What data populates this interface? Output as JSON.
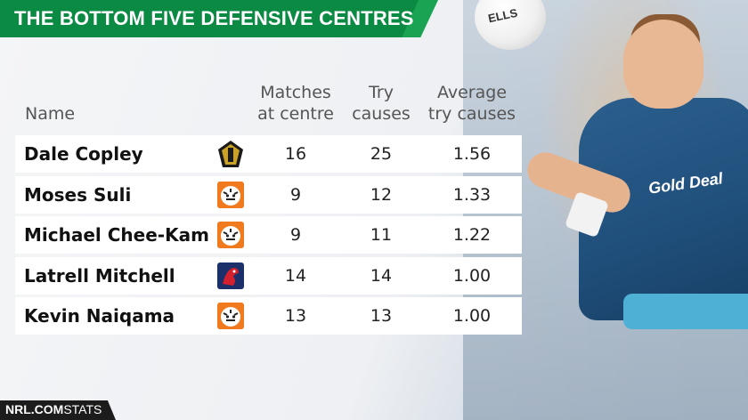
{
  "title": "THE BOTTOM FIVE DEFENSIVE CENTRES",
  "headers": {
    "name": "Name",
    "matches_line1": "Matches",
    "matches_line2": "at centre",
    "try_line1": "Try",
    "try_line2": "causes",
    "avg_line1": "Average",
    "avg_line2": "try causes"
  },
  "chart_data": {
    "type": "table",
    "title": "THE BOTTOM FIVE DEFENSIVE CENTRES",
    "columns": [
      "Name",
      "Matches at centre",
      "Try causes",
      "Average try causes"
    ],
    "rows": [
      {
        "name": "Dale Copley",
        "team_logo": "titans-logo-icon",
        "matches": "16",
        "try_causes": "25",
        "average": "1.56"
      },
      {
        "name": "Moses Suli",
        "team_logo": "tigers-logo-icon",
        "matches": "9",
        "try_causes": "12",
        "average": "1.33"
      },
      {
        "name": "Michael Chee-Kam",
        "team_logo": "tigers-logo-icon",
        "matches": "9",
        "try_causes": "11",
        "average": "1.22"
      },
      {
        "name": "Latrell Mitchell",
        "team_logo": "roosters-logo-icon",
        "matches": "14",
        "try_causes": "14",
        "average": "1.00"
      },
      {
        "name": "Kevin Naiqama",
        "team_logo": "tigers-logo-icon",
        "matches": "13",
        "try_causes": "13",
        "average": "1.00"
      }
    ]
  },
  "photo": {
    "ball_text": "ELLS",
    "jersey_sponsor": "Gold Deal"
  },
  "footer": {
    "brand": "NRL.COM",
    "suffix": "STATS"
  },
  "colors": {
    "banner_green": "#0b8a43",
    "row_bg": "#ffffff",
    "footer_bg": "#1c1c1c",
    "tigers_orange": "#f07a1d",
    "titans_gold": "#c9a227",
    "roosters_blue": "#1b2f6b",
    "roosters_red": "#d3202f"
  }
}
